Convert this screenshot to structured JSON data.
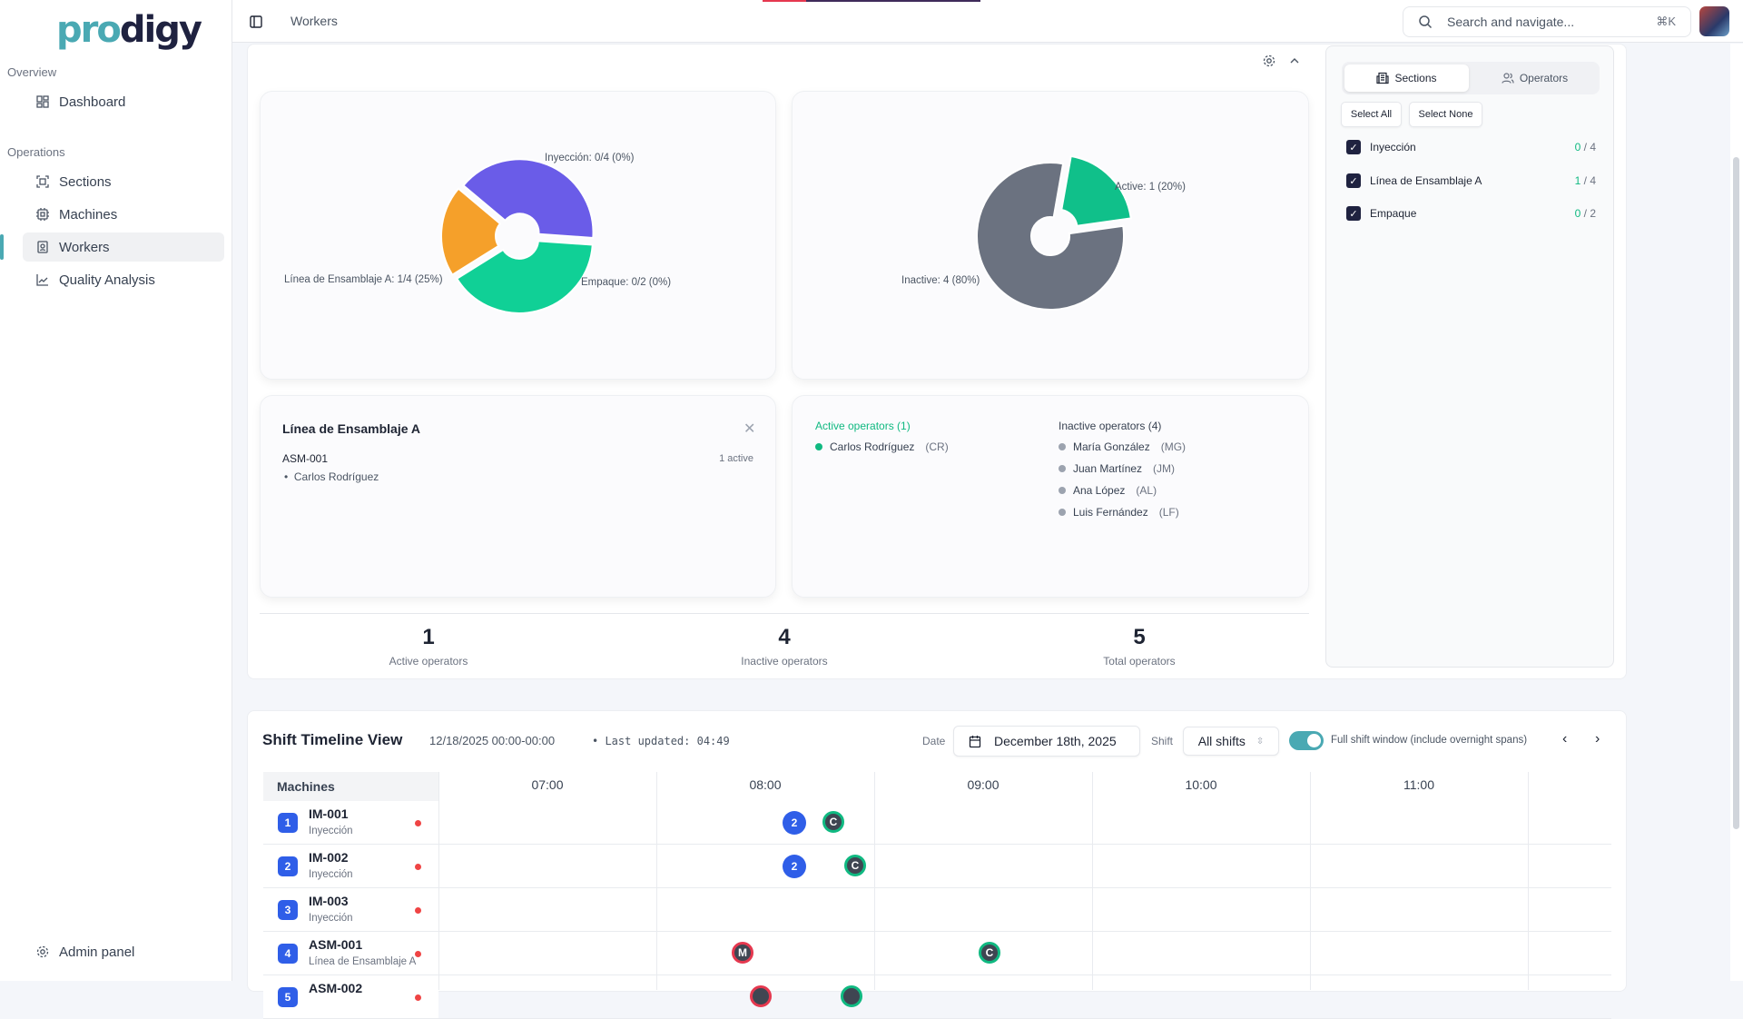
{
  "app": {
    "logo": "prodigy",
    "page_title": "Workers",
    "search_placeholder": "Search and navigate...",
    "search_shortcut": "⌘K"
  },
  "sidebar": {
    "groups": [
      {
        "label": "Overview",
        "items": [
          {
            "label": "Dashboard",
            "icon": "dashboard-icon"
          }
        ]
      },
      {
        "label": "Operations",
        "items": [
          {
            "label": "Sections",
            "icon": "sections-icon"
          },
          {
            "label": "Machines",
            "icon": "cpu-icon"
          },
          {
            "label": "Workers",
            "icon": "badge-icon",
            "active": true
          },
          {
            "label": "Quality Analysis",
            "icon": "chart-line-icon"
          }
        ]
      }
    ],
    "footer": {
      "label": "Admin panel"
    }
  },
  "chart_data": [
    {
      "type": "pie",
      "title": "Sections",
      "categories": [
        "Inyección",
        "Línea de Ensamblaje A",
        "Empaque"
      ],
      "values": [
        4,
        4,
        2
      ],
      "active": [
        0,
        1,
        0
      ],
      "labels": [
        "Inyección: 0/4 (0%)",
        "Línea de Ensamblaje A: 1/4 (25%)",
        "Empaque: 0/2 (0%)"
      ],
      "colors": [
        "#6a5ce8",
        "#10d096",
        "#f5a02a"
      ]
    },
    {
      "type": "pie",
      "title": "Operators",
      "categories": [
        "Active",
        "Inactive"
      ],
      "values": [
        1,
        4
      ],
      "labels": [
        "Active: 1 (20%)",
        "Inactive: 4 (80%)"
      ],
      "colors": [
        "#10c08a",
        "#6b7280"
      ]
    }
  ],
  "detail": {
    "title": "Línea de Ensamblaje A",
    "machine": "ASM-001",
    "machine_status": "1 active",
    "operators": [
      "Carlos Rodríguez"
    ]
  },
  "operators": {
    "active_title": "Active operators (1)",
    "inactive_title": "Inactive operators (4)",
    "active": [
      {
        "name": "Carlos Rodríguez",
        "initials": "(CR)"
      }
    ],
    "inactive": [
      {
        "name": "María González",
        "initials": "(MG)"
      },
      {
        "name": "Juan Martínez",
        "initials": "(JM)"
      },
      {
        "name": "Ana López",
        "initials": "(AL)"
      },
      {
        "name": "Luis Fernández",
        "initials": "(LF)"
      }
    ]
  },
  "stats": [
    {
      "value": "1",
      "label": "Active operators"
    },
    {
      "value": "4",
      "label": "Inactive operators"
    },
    {
      "value": "5",
      "label": "Total operators"
    }
  ],
  "filter": {
    "tabs": [
      "Sections",
      "Operators"
    ],
    "select_all": "Select All",
    "select_none": "Select None",
    "sections": [
      {
        "name": "Inyección",
        "active": "0",
        "total": " / 4"
      },
      {
        "name": "Línea de Ensamblaje A",
        "active": "1",
        "total": " / 4"
      },
      {
        "name": "Empaque",
        "active": "0",
        "total": " / 2"
      }
    ]
  },
  "timeline": {
    "title": "Shift Timeline View",
    "range": "12/18/2025 00:00-00:00",
    "updated": "• Last updated: 04:49",
    "date_label": "Date",
    "date_value": "December 18th, 2025",
    "shift_label": "Shift",
    "shift_value": "All shifts",
    "toggle_label": "Full shift window (include overnight spans)",
    "toggle_on": true,
    "machines_header": "Machines",
    "hours": [
      "07:00",
      "08:00",
      "09:00",
      "10:00",
      "11:00"
    ],
    "machines": [
      {
        "num": "1",
        "name": "IM-001",
        "section": "Inyección"
      },
      {
        "num": "2",
        "name": "IM-002",
        "section": "Inyección"
      },
      {
        "num": "3",
        "name": "IM-003",
        "section": "Inyección"
      },
      {
        "num": "4",
        "name": "ASM-001",
        "section": "Línea de Ensamblaje A"
      },
      {
        "num": "5",
        "name": "ASM-002",
        "section": ""
      }
    ],
    "events": [
      {
        "row": 0,
        "time": "08:08",
        "type": "n",
        "label": "2"
      },
      {
        "row": 0,
        "time": "08:19",
        "type": "c",
        "label": "C"
      },
      {
        "row": 1,
        "time": "08:08",
        "type": "n",
        "label": "2"
      },
      {
        "row": 1,
        "time": "08:25",
        "type": "c",
        "label": "C"
      },
      {
        "row": 3,
        "time": "07:54",
        "type": "m",
        "label": "M"
      },
      {
        "row": 3,
        "time": "09:02",
        "type": "c",
        "label": "C"
      },
      {
        "row": 4,
        "time": "07:59",
        "type": "m",
        "label": ""
      },
      {
        "row": 4,
        "time": "08:24",
        "type": "c",
        "label": ""
      }
    ]
  }
}
